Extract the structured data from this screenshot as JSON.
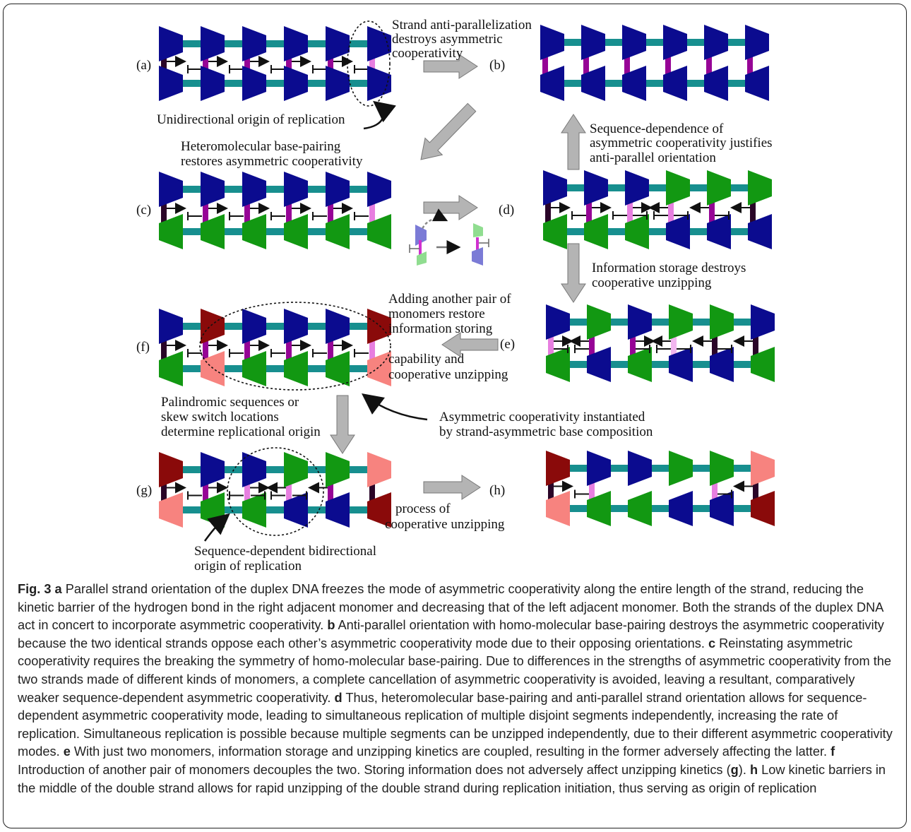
{
  "panels": [
    {
      "label": "(a)"
    },
    {
      "label": "(b)"
    },
    {
      "label": "(c)"
    },
    {
      "label": "(d)"
    },
    {
      "label": "(e)"
    },
    {
      "label": "(f)"
    },
    {
      "label": "(g)"
    },
    {
      "label": "(h)"
    }
  ],
  "annotations": {
    "a_to_b": [
      "Strand anti-parallelization",
      "destroys asymmetric",
      "cooperativity"
    ],
    "a_origin": [
      "Unidirectional origin of replication"
    ],
    "a_to_c": [
      "Heteromolecular base-pairing",
      "restores asymmetric cooperativity"
    ],
    "d_to_b": [
      "Sequence-dependence of",
      "asymmetric cooperativity justifies",
      "anti-parallel orientation"
    ],
    "d_to_e": [
      "Information storage destroys",
      "cooperative unzipping"
    ],
    "e_to_f_top": [
      "Adding another pair of",
      "monomers restore",
      "information storing"
    ],
    "e_to_f_bottom": [
      "capability and",
      "cooperative unzipping"
    ],
    "f_to_g": [
      "Palindromic sequences or",
      "skew switch locations",
      "determine replicational origin"
    ],
    "asym_comp": [
      "Asymmetric cooperativity instantiated",
      "by strand-asymmetric base composition"
    ],
    "g_origin": [
      "Sequence-dependent bidirectional",
      "origin of replication"
    ],
    "g_to_h": [
      "process of",
      "cooperative unzipping"
    ]
  },
  "caption": [
    {
      "text": "Fig. 3",
      "bold": true
    },
    {
      "text": " a",
      "bold": true
    },
    {
      "text": " Parallel strand orientation of the duplex DNA freezes the mode of asymmetric cooperativity along the entire length of the strand, reducing the kinetic barrier of the hydrogen bond in the right adjacent monomer and decreasing that of the left adjacent monomer. Both the strands of the duplex DNA act in concert to incorporate asymmetric cooperativity. ",
      "bold": false
    },
    {
      "text": "b",
      "bold": true
    },
    {
      "text": " Anti-parallel orientation with homo-molecular base-pairing destroys the asymmetric cooperativity because the two identical strands oppose each other’s asymmetric cooperativity mode due to their opposing orientations. ",
      "bold": false
    },
    {
      "text": "c",
      "bold": true
    },
    {
      "text": " Reinstating asymmetric cooperativity requires the breaking the symmetry of homo-molecular base-pairing. Due to differences in the strengths of asymmetric cooperativity from the two strands made of different kinds of monomers, a complete cancellation of asymmetric cooperativity is avoided, leaving a resultant, comparatively weaker sequence-dependent asymmetric cooperativity. ",
      "bold": false
    },
    {
      "text": "d",
      "bold": true
    },
    {
      "text": " Thus, heteromolecular base-pairing and anti-parallel strand orientation allows for sequence-dependent asymmetric cooperativity mode, leading to simultaneous replication of multiple disjoint segments independently, increasing the rate of replication. Simultaneous replication is possible because multiple segments can be unzipped independently, due to their different asymmetric cooperativity modes. ",
      "bold": false
    },
    {
      "text": "e",
      "bold": true
    },
    {
      "text": " With just two monomers, information storage and unzipping kinetics are coupled, resulting in the former adversely affecting the latter. ",
      "bold": false
    },
    {
      "text": "f",
      "bold": true
    },
    {
      "text": " Introduction of another pair of monomers decouples the two. Storing information does not adversely affect unzipping kinetics (",
      "bold": false
    },
    {
      "text": "g",
      "bold": true
    },
    {
      "text": "). ",
      "bold": false
    },
    {
      "text": "h",
      "bold": true
    },
    {
      "text": " Low kinetic barriers in the middle of the double strand allows for rapid unzipping of the double strand during replication initiation, thus serving as origin of replication",
      "bold": false
    }
  ]
}
